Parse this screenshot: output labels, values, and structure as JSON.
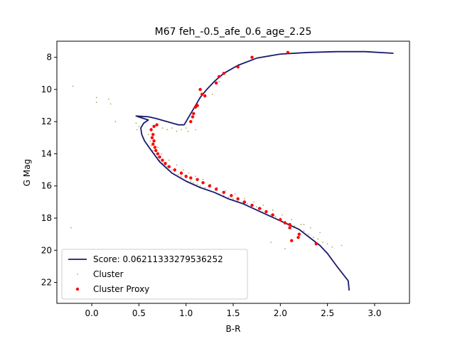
{
  "chart_data": {
    "type": "scatter",
    "title": "M67 feh_-0.5_afe_0.6_age_2.25",
    "xlabel": "B-R",
    "ylabel": "G Mag",
    "xlim": [
      -0.37,
      3.37
    ],
    "ylim": [
      23.3,
      7.0
    ],
    "y_inverted": true,
    "grid": false,
    "legend_position": "lower-left",
    "x_ticks": [
      0.0,
      0.5,
      1.0,
      1.5,
      2.0,
      2.5,
      3.0
    ],
    "x_tick_labels": [
      "0.0",
      "0.5",
      "1.0",
      "1.5",
      "2.0",
      "2.5",
      "3.0"
    ],
    "y_ticks": [
      8,
      10,
      12,
      14,
      16,
      18,
      20,
      22
    ],
    "y_tick_labels": [
      "8",
      "10",
      "12",
      "14",
      "16",
      "18",
      "20",
      "22"
    ],
    "legend": [
      {
        "label": "Score: 0.06211333279536252",
        "marker": "line",
        "color": "#191970"
      },
      {
        "label": "Cluster",
        "marker": "dot-small",
        "color": "#b5a36a"
      },
      {
        "label": "Cluster Proxy",
        "marker": "dot",
        "color": "#ff0000"
      }
    ],
    "series": [
      {
        "name": "Score: 0.06211333279536252",
        "kind": "line",
        "color": "#191970",
        "x": [
          2.73,
          2.72,
          2.68,
          2.6,
          2.5,
          2.42,
          2.33,
          2.2,
          2.05,
          1.9,
          1.75,
          1.6,
          1.45,
          1.3,
          1.15,
          1.0,
          0.85,
          0.72,
          0.62,
          0.56,
          0.53,
          0.52,
          0.55,
          0.6,
          0.52,
          0.47,
          0.6,
          0.68,
          0.8,
          0.92,
          0.98,
          1.0,
          1.02,
          1.05,
          1.1,
          1.15,
          1.22,
          1.3,
          1.4,
          1.55,
          1.75,
          2.0,
          2.3,
          2.6,
          2.9,
          3.2
        ],
        "y": [
          22.5,
          21.9,
          21.6,
          21.0,
          20.2,
          19.7,
          19.3,
          18.7,
          18.3,
          17.9,
          17.5,
          17.1,
          16.8,
          16.4,
          16.1,
          15.7,
          15.2,
          14.5,
          13.7,
          13.2,
          12.8,
          12.4,
          12.1,
          11.9,
          11.75,
          11.65,
          11.7,
          11.8,
          12.0,
          12.2,
          12.2,
          12.0,
          11.8,
          11.5,
          11.0,
          10.5,
          10.0,
          9.5,
          9.0,
          8.5,
          8.05,
          7.8,
          7.7,
          7.65,
          7.65,
          7.75
        ]
      },
      {
        "name": "Cluster",
        "kind": "scatter-small",
        "color": "#b5a36a",
        "x": [
          -0.2,
          0.05,
          0.05,
          0.18,
          0.2,
          0.25,
          0.47,
          0.48,
          0.5,
          -0.22,
          0.75,
          0.8,
          0.85,
          0.9,
          0.95,
          1.0,
          1.02,
          1.1,
          0.6,
          0.62,
          0.63,
          0.65,
          0.67,
          0.7,
          0.72,
          0.75,
          0.78,
          0.8,
          0.85,
          0.88,
          0.92,
          0.95,
          1.0,
          1.05,
          1.08,
          1.12,
          1.15,
          1.2,
          1.25,
          1.3,
          1.35,
          1.4,
          1.45,
          1.5,
          1.55,
          1.6,
          1.65,
          1.7,
          1.75,
          1.8,
          1.85,
          1.9,
          1.95,
          2.0,
          2.05,
          2.1,
          2.15,
          2.2,
          2.25,
          2.3,
          2.35,
          2.4,
          2.45,
          2.5,
          2.55,
          2.65,
          0.7,
          0.74,
          0.82,
          0.9,
          0.97,
          1.03,
          1.1,
          1.18,
          1.26,
          1.33,
          1.42,
          1.52,
          1.62,
          1.72,
          1.82,
          1.92,
          2.02,
          2.12,
          2.22,
          2.32,
          2.42,
          1.28,
          1.35,
          1.9,
          2.05,
          2.25
        ],
        "y": [
          9.8,
          10.5,
          10.8,
          10.6,
          10.9,
          12.0,
          12.1,
          12.5,
          12.3,
          18.6,
          12.4,
          12.5,
          12.4,
          12.6,
          12.5,
          12.4,
          12.6,
          12.5,
          12.8,
          13.2,
          13.5,
          13.8,
          14.0,
          14.2,
          14.4,
          14.6,
          14.7,
          14.8,
          15.0,
          15.1,
          15.3,
          15.4,
          15.5,
          15.7,
          15.8,
          15.9,
          16.0,
          16.1,
          16.3,
          16.4,
          16.5,
          16.6,
          16.7,
          16.8,
          16.9,
          17.0,
          17.1,
          17.2,
          17.3,
          17.4,
          17.6,
          17.8,
          17.9,
          18.0,
          18.2,
          18.4,
          18.5,
          18.7,
          18.8,
          19.0,
          19.2,
          19.3,
          19.5,
          19.6,
          19.8,
          19.7,
          13.6,
          14.0,
          14.4,
          14.7,
          15.0,
          15.2,
          15.4,
          15.6,
          15.9,
          16.1,
          16.3,
          16.5,
          16.8,
          17.0,
          17.2,
          17.5,
          17.8,
          18.1,
          18.4,
          18.6,
          18.9,
          10.3,
          9.5,
          19.5,
          19.9,
          18.4
        ]
      },
      {
        "name": "Cluster Proxy",
        "kind": "scatter",
        "color": "#ff0000",
        "x": [
          2.08,
          1.7,
          1.55,
          1.4,
          1.35,
          1.32,
          1.2,
          1.15,
          1.17,
          1.12,
          1.1,
          1.08,
          1.07,
          1.05,
          0.63,
          0.66,
          0.69,
          0.65,
          0.64,
          0.66,
          0.65,
          0.67,
          0.68,
          0.7,
          0.72,
          0.75,
          0.78,
          0.82,
          0.88,
          0.95,
          1.0,
          1.05,
          1.12,
          1.18,
          1.25,
          1.32,
          1.4,
          1.48,
          1.55,
          1.62,
          1.7,
          1.78,
          1.85,
          1.92,
          2.0,
          2.05,
          2.1,
          2.12,
          2.2,
          2.38,
          2.1,
          2.19
        ],
        "y": [
          7.7,
          8.0,
          8.6,
          9.0,
          9.2,
          9.6,
          10.4,
          10.0,
          10.3,
          11.0,
          11.1,
          11.5,
          11.7,
          12.0,
          12.5,
          12.3,
          12.2,
          12.8,
          13.0,
          13.2,
          13.4,
          13.6,
          13.8,
          14.0,
          14.2,
          14.4,
          14.6,
          14.8,
          15.0,
          15.2,
          15.4,
          15.5,
          15.6,
          15.8,
          16.0,
          16.2,
          16.4,
          16.6,
          16.8,
          17.0,
          17.2,
          17.4,
          17.6,
          17.8,
          18.1,
          18.3,
          18.6,
          19.4,
          19.0,
          19.6,
          18.4,
          19.2
        ]
      }
    ]
  }
}
